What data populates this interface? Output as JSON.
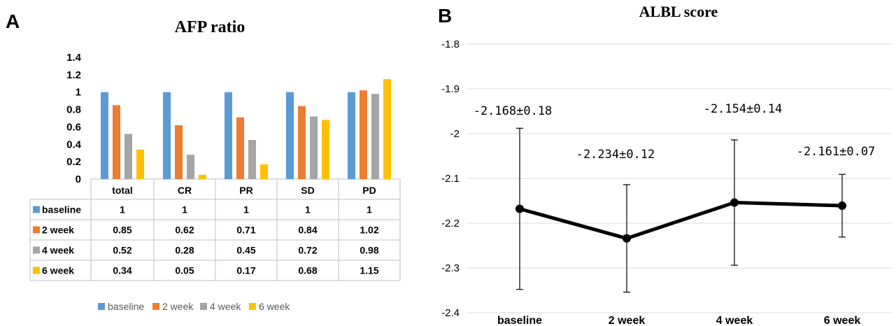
{
  "panel_a": {
    "label": "A",
    "legend": [
      "baseline",
      "2 week",
      "4 week",
      "6 week"
    ]
  },
  "panel_b": {
    "label": "B"
  },
  "colors": {
    "baseline": "#5B9BD5",
    "2 week": "#ED7D31",
    "4 week": "#A5A5A5",
    "6 week": "#FFC000",
    "line": "#000000",
    "grid": "#D9D9D9"
  },
  "chart_data": [
    {
      "type": "bar",
      "title": "AFP ratio",
      "categories": [
        "total",
        "CR",
        "PR",
        "SD",
        "PD"
      ],
      "series": [
        {
          "name": "baseline",
          "values": [
            1,
            1,
            1,
            1,
            1
          ]
        },
        {
          "name": "2 week",
          "values": [
            0.85,
            0.62,
            0.71,
            0.84,
            1.02
          ]
        },
        {
          "name": "4 week",
          "values": [
            0.52,
            0.28,
            0.45,
            0.72,
            0.98
          ]
        },
        {
          "name": "6 week",
          "values": [
            0.34,
            0.05,
            0.17,
            0.68,
            1.15
          ]
        }
      ],
      "ylim": [
        0,
        1.4
      ],
      "yticks": [
        "0",
        "0.2",
        "0.4",
        "0.6",
        "0.8",
        "1",
        "1.2",
        "1.4"
      ],
      "table": {
        "rows": [
          {
            "name": "baseline",
            "cells": [
              "1",
              "1",
              "1",
              "1",
              "1"
            ]
          },
          {
            "name": "2 week",
            "cells": [
              "0.85",
              "0.62",
              "0.71",
              "0.84",
              "1.02"
            ]
          },
          {
            "name": "4 week",
            "cells": [
              "0.52",
              "0.28",
              "0.45",
              "0.72",
              "0.98"
            ]
          },
          {
            "name": "6 week",
            "cells": [
              "0.34",
              "0.05",
              "0.17",
              "0.68",
              "1.15"
            ]
          }
        ]
      },
      "legend_position": "bottom",
      "grid": false
    },
    {
      "type": "line",
      "title": "ALBL score",
      "categories": [
        "baseline",
        "2 week",
        "4 week",
        "6 week"
      ],
      "values": [
        -2.168,
        -2.234,
        -2.154,
        -2.161
      ],
      "errors": [
        0.18,
        0.12,
        0.14,
        0.07
      ],
      "annotations": [
        "-2.168±0.18",
        "-2.234±0.12",
        "-2.154±0.14",
        "-2.161±0.07"
      ],
      "ylim": [
        -2.4,
        -1.8
      ],
      "yticks": [
        "-1.8",
        "-1.9",
        "-2",
        "-2.1",
        "-2.2",
        "-2.3",
        "-2.4"
      ],
      "grid": true
    }
  ]
}
